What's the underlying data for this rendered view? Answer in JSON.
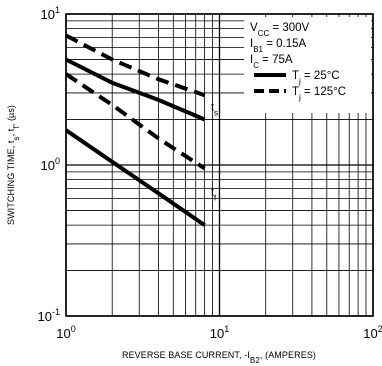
{
  "chart_data": {
    "type": "line",
    "title": "",
    "xlabel_parts": [
      "REVERSE BASE CURRENT, -I",
      "B2",
      ", (AMPERES)"
    ],
    "ylabel_parts": [
      "SWITCHING TIME, t",
      "s",
      ", t",
      "f",
      ", (µs)"
    ],
    "x_scale": "log",
    "y_scale": "log",
    "xlim": [
      1,
      100
    ],
    "ylim": [
      0.1,
      10
    ],
    "grid": true,
    "x_ticks": [
      {
        "value": 1,
        "base": "10",
        "exp": "0"
      },
      {
        "value": 10,
        "base": "10",
        "exp": "1"
      },
      {
        "value": 100,
        "base": "10",
        "exp": "2"
      }
    ],
    "y_ticks": [
      {
        "value": 0.1,
        "base": "10",
        "exp": "-1"
      },
      {
        "value": 1,
        "base": "10",
        "exp": "0"
      },
      {
        "value": 10,
        "base": "10",
        "exp": "1"
      }
    ],
    "legend": {
      "placement": "top-right",
      "conditions": [
        {
          "parts": [
            "V",
            "CC",
            " = 300V"
          ]
        },
        {
          "parts": [
            "I",
            "B1",
            " = 0.15A"
          ]
        },
        {
          "parts": [
            "I",
            "C",
            " = 75A"
          ]
        }
      ],
      "entries": [
        {
          "style": "solid",
          "parts": [
            "T",
            "j",
            " = 25°C"
          ]
        },
        {
          "style": "dashed",
          "parts": [
            "T",
            "j",
            " = 125°C"
          ]
        }
      ]
    },
    "series": [
      {
        "style": "dashed",
        "curve": "ts",
        "x": [
          1,
          2,
          4,
          8
        ],
        "y": [
          7.2,
          5.0,
          3.7,
          2.9
        ]
      },
      {
        "style": "solid",
        "curve": "ts",
        "x": [
          1,
          2,
          4,
          8
        ],
        "y": [
          5.0,
          3.5,
          2.7,
          2.0
        ]
      },
      {
        "style": "dashed",
        "curve": "tf",
        "x": [
          1,
          2,
          4,
          8
        ],
        "y": [
          4.0,
          2.5,
          1.5,
          0.95
        ]
      },
      {
        "style": "solid",
        "curve": "tf",
        "x": [
          1,
          2,
          4,
          8
        ],
        "y": [
          1.7,
          1.05,
          0.65,
          0.4
        ]
      }
    ],
    "curve_labels": [
      {
        "parts": [
          "t",
          "s"
        ],
        "x": 8.8,
        "y": 2.3
      },
      {
        "parts": [
          "t",
          "f"
        ],
        "x": 8.8,
        "y": 0.63
      }
    ]
  }
}
